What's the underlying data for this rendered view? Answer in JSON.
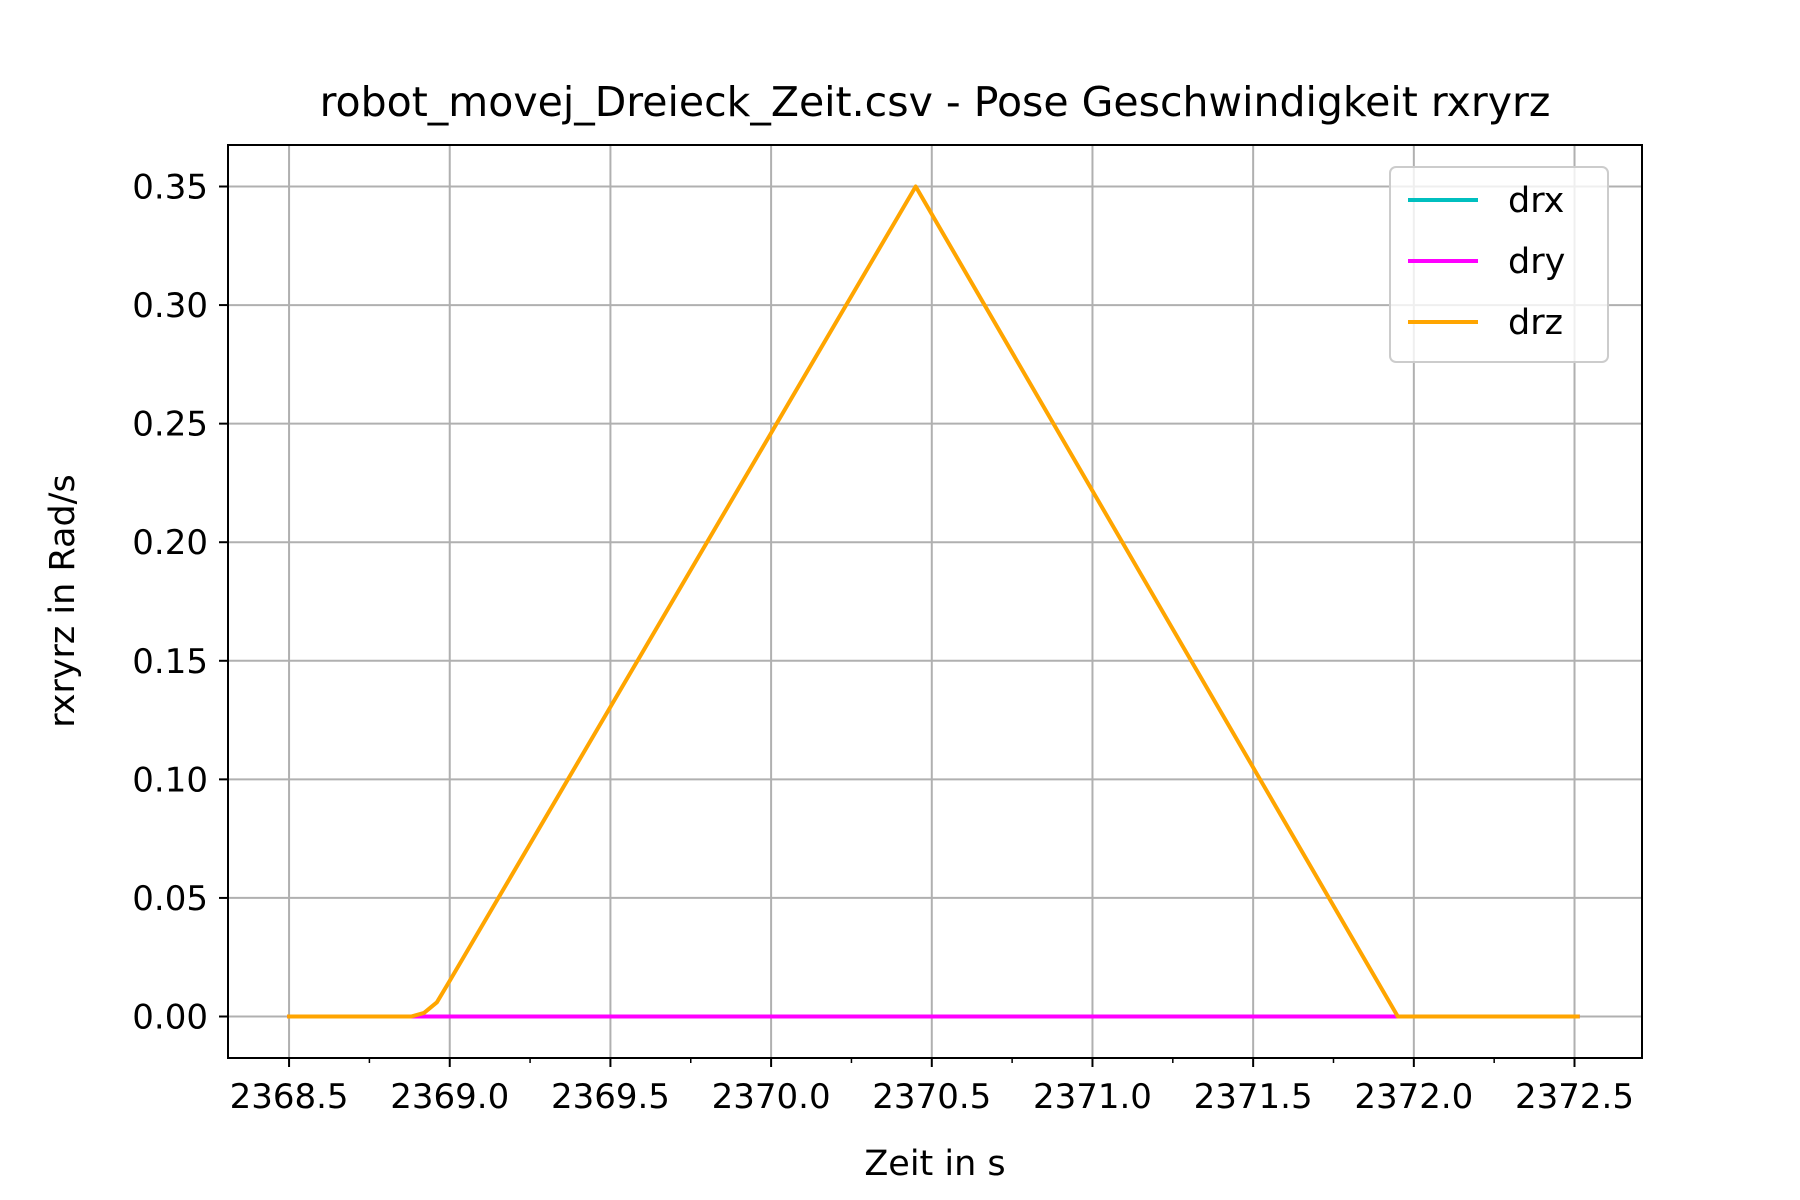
{
  "chart_data": {
    "type": "line",
    "title": "robot_movej_Dreieck_Zeit.csv - Pose Geschwindigkeit rxryrz",
    "xlabel": "Zeit in s",
    "ylabel": "rxryrz in Rad/s",
    "xlim": [
      2368.31,
      2372.71
    ],
    "ylim": [
      -0.0175,
      0.3675
    ],
    "x_ticks": [
      2368.5,
      2369.0,
      2369.5,
      2370.0,
      2370.5,
      2371.0,
      2371.5,
      2372.0,
      2372.5
    ],
    "x_tick_labels": [
      "2368.5",
      "2369.0",
      "2369.5",
      "2370.0",
      "2370.5",
      "2371.0",
      "2371.5",
      "2372.0",
      "2372.5"
    ],
    "y_ticks": [
      0.0,
      0.05,
      0.1,
      0.15,
      0.2,
      0.25,
      0.3,
      0.35
    ],
    "y_tick_labels": [
      "0.00",
      "0.05",
      "0.10",
      "0.15",
      "0.20",
      "0.25",
      "0.30",
      "0.35"
    ],
    "grid": true,
    "legend_position": "top-right",
    "series": [
      {
        "name": "drx",
        "color": "#00bfbf",
        "points": [
          [
            2368.5,
            0.0
          ],
          [
            2372.51,
            0.0
          ]
        ]
      },
      {
        "name": "dry",
        "color": "#ff00ff",
        "points": [
          [
            2368.5,
            0.0
          ],
          [
            2372.51,
            0.0
          ]
        ]
      },
      {
        "name": "drz",
        "color": "#ffa500",
        "points": [
          [
            2368.5,
            0.0
          ],
          [
            2368.88,
            0.0
          ],
          [
            2368.92,
            0.0015
          ],
          [
            2368.96,
            0.006
          ],
          [
            2369.0,
            0.015
          ],
          [
            2370.45,
            0.35
          ],
          [
            2371.95,
            0.0
          ],
          [
            2372.51,
            0.0
          ]
        ]
      }
    ]
  }
}
